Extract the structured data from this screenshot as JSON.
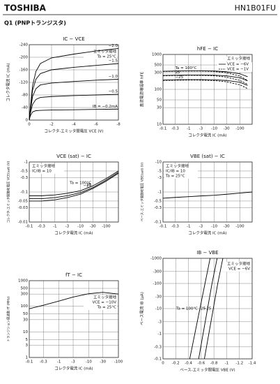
{
  "header": {
    "brand": "TOSHIBA",
    "part": "HN1B01FU"
  },
  "section": "Q1 (PNPトランジスタ)",
  "chart_data": [
    {
      "type": "line",
      "title": "IC − VCE",
      "x_label": "コレクタ-エミッタ間電圧 VCE (V)",
      "y_label": "コレクタ電流 IC (mA)",
      "xlim": [
        0,
        -8
      ],
      "xticks": [
        0,
        -2,
        -4,
        -6,
        -8
      ],
      "ylim": [
        0,
        -240
      ],
      "yticks": [
        0,
        -40,
        -80,
        -120,
        -160,
        -200,
        -240
      ],
      "grid": true,
      "annotations": [
        "エミッタ接地",
        "Ta = 25°C"
      ],
      "x": [
        0,
        -0.1,
        -0.3,
        -0.6,
        -1,
        -2,
        -4,
        -6,
        -8
      ],
      "series": [
        {
          "name": "−2.0",
          "values": [
            0,
            -40,
            -110,
            -155,
            -180,
            -198,
            -210,
            -220,
            -228
          ]
        },
        {
          "name": "−1.5",
          "values": [
            0,
            -36,
            -95,
            -130,
            -148,
            -160,
            -168,
            -174,
            -180
          ]
        },
        {
          "name": "−1.0",
          "values": [
            0,
            -30,
            -75,
            -100,
            -112,
            -118,
            -123,
            -127,
            -130
          ]
        },
        {
          "name": "−0.5",
          "values": [
            0,
            -22,
            -50,
            -66,
            -72,
            -75,
            -78,
            -80,
            -82
          ]
        },
        {
          "name": "IB = −0.2mA",
          "values": [
            0,
            -14,
            -26,
            -30,
            -31,
            -32,
            -33,
            -34,
            -35
          ]
        }
      ]
    },
    {
      "type": "line",
      "title": "hFE − IC",
      "x_label": "コレクタ電流 IC (mA)",
      "y_label": "直流電流増幅率 hFE",
      "xlog": true,
      "ylog": true,
      "xlim": [
        -0.1,
        -300
      ],
      "xticks": [
        -0.1,
        -0.3,
        -1,
        -3,
        -10,
        -30,
        -100
      ],
      "ylim": [
        10,
        1000
      ],
      "yticks": [
        10,
        30,
        50,
        100,
        300,
        500,
        1000
      ],
      "grid": true,
      "annotations": [
        "エミッタ接地"
      ],
      "legend": [
        {
          "label": "VCE = −6V",
          "style": "solid"
        },
        {
          "label": "VCE = −1V",
          "style": "dashed"
        }
      ],
      "x": [
        -0.1,
        -0.3,
        -1,
        -3,
        -10,
        -30,
        -100,
        -200
      ],
      "series": [
        {
          "name": "Ta = 100°C",
          "style": "solid",
          "values": [
            330,
            335,
            340,
            340,
            335,
            320,
            280,
            230
          ]
        },
        {
          "name": "25",
          "style": "solid",
          "values": [
            250,
            255,
            258,
            258,
            255,
            245,
            215,
            175
          ]
        },
        {
          "name": "−25",
          "style": "solid",
          "values": [
            185,
            188,
            190,
            190,
            188,
            180,
            160,
            130
          ]
        },
        {
          "style": "dashed",
          "values": [
            325,
            330,
            335,
            335,
            325,
            300,
            240,
            180
          ]
        },
        {
          "style": "dashed",
          "values": [
            245,
            250,
            253,
            252,
            245,
            225,
            180,
            140
          ]
        },
        {
          "style": "dashed",
          "values": [
            180,
            183,
            185,
            184,
            178,
            165,
            135,
            105
          ]
        }
      ]
    },
    {
      "type": "line",
      "title": "VCE (sat) − IC",
      "x_label": "コレクタ電流 IC (mA)",
      "y_label": "コレクタ-エミッタ間飽和電圧 VCE(sat) (V)",
      "xlog": true,
      "ylog": true,
      "xlim": [
        -0.1,
        -300
      ],
      "xticks": [
        -0.1,
        -0.3,
        -1,
        -3,
        -10,
        -30,
        -100
      ],
      "ylim": [
        -0.01,
        -1
      ],
      "yticks": [
        -0.01,
        -0.03,
        -0.05,
        -0.1,
        -0.3,
        -0.5,
        -1
      ],
      "grid": true,
      "annotations": [
        "エミッタ接地",
        "IC/IB = 10"
      ],
      "x": [
        -0.1,
        -0.3,
        -1,
        -3,
        -10,
        -30,
        -100,
        -300
      ],
      "series": [
        {
          "name": "Ta = 100°C",
          "values": [
            -0.075,
            -0.075,
            -0.08,
            -0.09,
            -0.11,
            -0.16,
            -0.28,
            -0.5
          ]
        },
        {
          "name": "25",
          "values": [
            -0.06,
            -0.06,
            -0.065,
            -0.075,
            -0.095,
            -0.14,
            -0.25,
            -0.45
          ]
        },
        {
          "name": "−25",
          "values": [
            -0.05,
            -0.05,
            -0.055,
            -0.065,
            -0.085,
            -0.13,
            -0.23,
            -0.42
          ]
        }
      ]
    },
    {
      "type": "line",
      "title": "VBE (sat) − IC",
      "x_label": "コレクタ電流 IC (mA)",
      "y_label": "ベース-エミッタ間飽和電圧 VBE(sat) (V)",
      "xlog": true,
      "ylog": true,
      "xlim": [
        -0.1,
        -300
      ],
      "xticks": [
        -0.1,
        -0.3,
        -1,
        -3,
        -10,
        -30,
        -100
      ],
      "ylim": [
        -0.1,
        -10
      ],
      "yticks": [
        -0.1,
        -0.3,
        -0.5,
        -1,
        -3,
        -5,
        -10
      ],
      "grid": true,
      "annotations": [
        "エミッタ接地",
        "IC/IB = 10",
        "Ta = 25°C"
      ],
      "x": [
        -0.1,
        -0.3,
        -1,
        -3,
        -10,
        -30,
        -100,
        -300
      ],
      "series": [
        {
          "values": [
            -0.62,
            -0.66,
            -0.7,
            -0.74,
            -0.78,
            -0.84,
            -0.92,
            -1.0
          ]
        }
      ]
    },
    {
      "type": "line",
      "title": "fT − IC",
      "x_label": "コレクタ電流 IC (mA)",
      "y_label": "トランジション周波数 fT (MHz)",
      "xlog": true,
      "ylog": true,
      "xlim": [
        -0.1,
        -100
      ],
      "xticks": [
        -0.1,
        -0.3,
        -1,
        -3,
        -10,
        -30,
        -100
      ],
      "ylim": [
        1,
        1000
      ],
      "yticks": [
        1,
        3,
        5,
        10,
        30,
        50,
        100,
        300,
        500,
        1000
      ],
      "grid": true,
      "annotations": [
        "エミッタ接地",
        "VCE = −10V",
        "Ta = 25°C"
      ],
      "x": [
        -0.1,
        -0.3,
        -1,
        -3,
        -10,
        -30,
        -100
      ],
      "series": [
        {
          "values": [
            80,
            110,
            160,
            230,
            310,
            350,
            300
          ]
        }
      ]
    },
    {
      "type": "line",
      "title": "IB − VBE",
      "x_label": "ベース-エミッタ間電圧 VBE (V)",
      "y_label": "ベース電流 IB (μA)",
      "ylog": true,
      "xlim": [
        0,
        -1.4
      ],
      "xticks": [
        0,
        -0.2,
        -0.4,
        -0.6,
        -0.8,
        -1,
        -1.2,
        -1.4
      ],
      "ylim": [
        -0.1,
        -1000
      ],
      "yticks": [
        -0.1,
        -0.3,
        -1,
        -3,
        -10,
        -30,
        -100,
        -300,
        -1000
      ],
      "grid": true,
      "annotations": [
        "エミッタ接地",
        "VCE = −6V"
      ],
      "series": [
        {
          "name": "Ta = 100°C",
          "x": [
            -0.42,
            -0.5,
            -0.58,
            -0.66,
            -0.74
          ],
          "values": [
            -0.1,
            -1,
            -10,
            -100,
            -1000
          ]
        },
        {
          "name": "25",
          "x": [
            -0.56,
            -0.63,
            -0.7,
            -0.77,
            -0.85
          ],
          "values": [
            -0.1,
            -1,
            -10,
            -100,
            -1000
          ]
        },
        {
          "name": "−25",
          "x": [
            -0.65,
            -0.72,
            -0.79,
            -0.86,
            -0.94
          ],
          "values": [
            -0.1,
            -1,
            -10,
            -100,
            -1000
          ]
        }
      ]
    }
  ]
}
